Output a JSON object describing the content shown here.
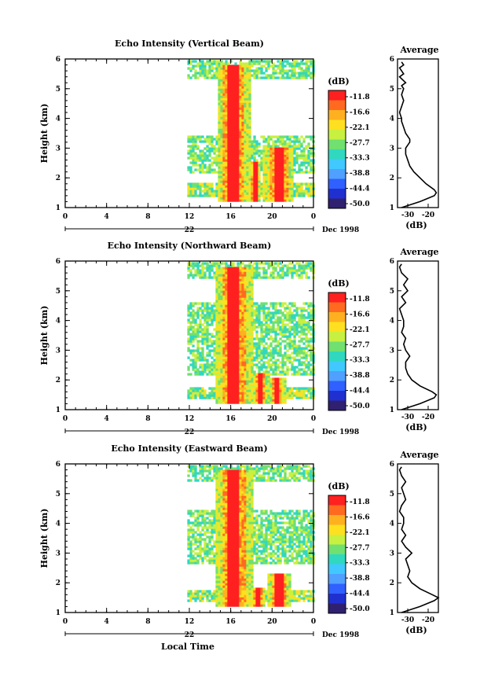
{
  "figure": {
    "x_axis_label": "Local Time",
    "month_label": "Dec 1998",
    "day_label": "22",
    "colorbar_unit": "(dB)",
    "average_title": "Average",
    "average_xlabel": "(dB)",
    "y_axis_label": "Height (km)"
  },
  "chart_data": [
    {
      "type": "heatmap",
      "title": "Echo Intensity (Vertical Beam)",
      "ylabel": "Height (km)",
      "xlabel": "Local Time",
      "x_ticks": [
        "0",
        "4",
        "8",
        "12",
        "16",
        "20",
        "0"
      ],
      "y_ticks": [
        "1",
        "2",
        "3",
        "4",
        "5",
        "6"
      ],
      "xlim": [
        0,
        24
      ],
      "ylim": [
        1,
        6
      ],
      "colorbar": {
        "unit": "(dB)",
        "labels": [
          "-11.8",
          "-16.6",
          "-22.1",
          "-27.7",
          "-33.3",
          "-38.8",
          "-44.4",
          "-50.0"
        ],
        "colors": [
          "#ff2020",
          "#ff6a20",
          "#ffb020",
          "#ffe020",
          "#c8f040",
          "#70e070",
          "#30d8c0",
          "#40c8ff",
          "#50a0ff",
          "#3060ff",
          "#2030d0",
          "#302070"
        ]
      },
      "data_start_hour": 11.8,
      "layers": [
        {
          "hmin": 1.3,
          "hmax": 1.8,
          "level": "moderate"
        },
        {
          "hmin": 2.1,
          "hmax": 3.4,
          "level": "weak"
        },
        {
          "hmin": 5.3,
          "hmax": 5.9,
          "level": "weak"
        }
      ],
      "precipitation": [
        {
          "time_center": 16.2,
          "time_width": 1.0,
          "top_km": 5.8,
          "level": "strong"
        },
        {
          "time_center": 20.5,
          "time_width": 0.9,
          "top_km": 3.0,
          "level": "strong"
        },
        {
          "time_center": 18.2,
          "time_width": 0.4,
          "top_km": 2.5,
          "level": "strong"
        }
      ],
      "average": {
        "xlabel": "(dB)",
        "x_ticks": [
          "-30",
          "-20"
        ],
        "xlim": [
          -35,
          -15
        ],
        "height_km": [
          1.0,
          1.2,
          1.4,
          1.5,
          1.6,
          1.8,
          2.0,
          2.2,
          2.4,
          2.6,
          2.8,
          3.0,
          3.2,
          3.3,
          3.5,
          3.7,
          3.9,
          4.0,
          4.2,
          4.4,
          4.6,
          4.8,
          5.0,
          5.1,
          5.2,
          5.4,
          5.5,
          5.7,
          5.8,
          5.9
        ],
        "db": [
          -33,
          -24,
          -17,
          -16,
          -17,
          -21,
          -24,
          -27,
          -29,
          -30,
          -31,
          -31,
          -29,
          -29,
          -31,
          -32,
          -33,
          -33,
          -34,
          -33,
          -32,
          -33,
          -32,
          -33,
          -31,
          -34,
          -32,
          -34,
          -32,
          -33
        ]
      }
    },
    {
      "type": "heatmap",
      "title": "Echo Intensity (Northward Beam)",
      "ylabel": "Height (km)",
      "xlabel": "Local Time",
      "x_ticks": [
        "0",
        "4",
        "8",
        "12",
        "16",
        "20",
        "0"
      ],
      "y_ticks": [
        "1",
        "2",
        "3",
        "4",
        "5",
        "6"
      ],
      "xlim": [
        0,
        24
      ],
      "ylim": [
        1,
        6
      ],
      "colorbar": {
        "unit": "(dB)",
        "labels": [
          "-11.8",
          "-16.6",
          "-22.1",
          "-27.7",
          "-33.3",
          "-38.8",
          "-44.4",
          "-50.0"
        ],
        "colors": [
          "#ff2020",
          "#ff6a20",
          "#ffb020",
          "#ffe020",
          "#c8f040",
          "#70e070",
          "#30d8c0",
          "#40c8ff",
          "#50a0ff",
          "#3060ff",
          "#2030d0",
          "#302070"
        ]
      },
      "data_start_hour": 11.8,
      "layers": [
        {
          "hmin": 1.3,
          "hmax": 1.7,
          "level": "moderate"
        },
        {
          "hmin": 2.1,
          "hmax": 4.6,
          "level": "weak"
        },
        {
          "hmin": 5.4,
          "hmax": 5.9,
          "level": "weak"
        }
      ],
      "precipitation": [
        {
          "time_center": 16.2,
          "time_width": 1.1,
          "top_km": 5.8,
          "level": "strong"
        },
        {
          "time_center": 18.8,
          "time_width": 0.5,
          "top_km": 2.2,
          "level": "strong"
        },
        {
          "time_center": 20.4,
          "time_width": 0.5,
          "top_km": 2.0,
          "level": "strong"
        }
      ],
      "average": {
        "xlabel": "(dB)",
        "x_ticks": [
          "-30",
          "-20"
        ],
        "xlim": [
          -35,
          -15
        ],
        "height_km": [
          1.0,
          1.2,
          1.4,
          1.5,
          1.6,
          1.8,
          2.0,
          2.2,
          2.4,
          2.6,
          2.8,
          3.0,
          3.2,
          3.4,
          3.6,
          3.8,
          4.0,
          4.2,
          4.4,
          4.6,
          4.8,
          5.0,
          5.1,
          5.2,
          5.4,
          5.6,
          5.8,
          5.9
        ],
        "db": [
          -33,
          -24,
          -17,
          -16,
          -18,
          -24,
          -28,
          -30,
          -31,
          -31,
          -29,
          -31,
          -32,
          -31,
          -33,
          -32,
          -32,
          -33,
          -34,
          -31,
          -33,
          -30,
          -31,
          -32,
          -30,
          -33,
          -34,
          -33
        ]
      }
    },
    {
      "type": "heatmap",
      "title": "Echo Intensity (Eastward Beam)",
      "ylabel": "Height (km)",
      "xlabel": "Local Time",
      "x_ticks": [
        "0",
        "4",
        "8",
        "12",
        "16",
        "20",
        "0"
      ],
      "y_ticks": [
        "1",
        "2",
        "3",
        "4",
        "5",
        "6"
      ],
      "xlim": [
        0,
        24
      ],
      "ylim": [
        1,
        6
      ],
      "colorbar": {
        "unit": "(dB)",
        "labels": [
          "-11.8",
          "-16.6",
          "-22.1",
          "-27.7",
          "-33.3",
          "-38.8",
          "-44.4",
          "-50.0"
        ],
        "colors": [
          "#ff2020",
          "#ff6a20",
          "#ffb020",
          "#ffe020",
          "#c8f040",
          "#70e070",
          "#30d8c0",
          "#40c8ff",
          "#50a0ff",
          "#3060ff",
          "#2030d0",
          "#302070"
        ]
      },
      "data_start_hour": 11.8,
      "layers": [
        {
          "hmin": 1.3,
          "hmax": 1.7,
          "level": "moderate"
        },
        {
          "hmin": 2.6,
          "hmax": 4.4,
          "level": "weak"
        },
        {
          "hmin": 5.4,
          "hmax": 5.9,
          "level": "weak"
        }
      ],
      "precipitation": [
        {
          "time_center": 16.2,
          "time_width": 1.1,
          "top_km": 5.8,
          "level": "strong"
        },
        {
          "time_center": 20.6,
          "time_width": 0.7,
          "top_km": 2.3,
          "level": "strong"
        },
        {
          "time_center": 18.5,
          "time_width": 0.4,
          "top_km": 1.8,
          "level": "strong"
        }
      ],
      "average": {
        "xlabel": "(dB)",
        "x_ticks": [
          "-30",
          "-20"
        ],
        "xlim": [
          -35,
          -15
        ],
        "height_km": [
          1.0,
          1.2,
          1.4,
          1.5,
          1.6,
          1.8,
          2.0,
          2.2,
          2.4,
          2.6,
          2.8,
          3.0,
          3.2,
          3.4,
          3.6,
          3.8,
          4.0,
          4.2,
          4.4,
          4.6,
          4.8,
          5.0,
          5.2,
          5.4,
          5.6,
          5.8,
          5.9
        ],
        "db": [
          -33,
          -24,
          -17,
          -15,
          -18,
          -24,
          -28,
          -30,
          -29,
          -30,
          -31,
          -28,
          -31,
          -33,
          -31,
          -33,
          -32,
          -32,
          -34,
          -33,
          -31,
          -32,
          -33,
          -31,
          -33,
          -34,
          -33
        ]
      }
    }
  ]
}
